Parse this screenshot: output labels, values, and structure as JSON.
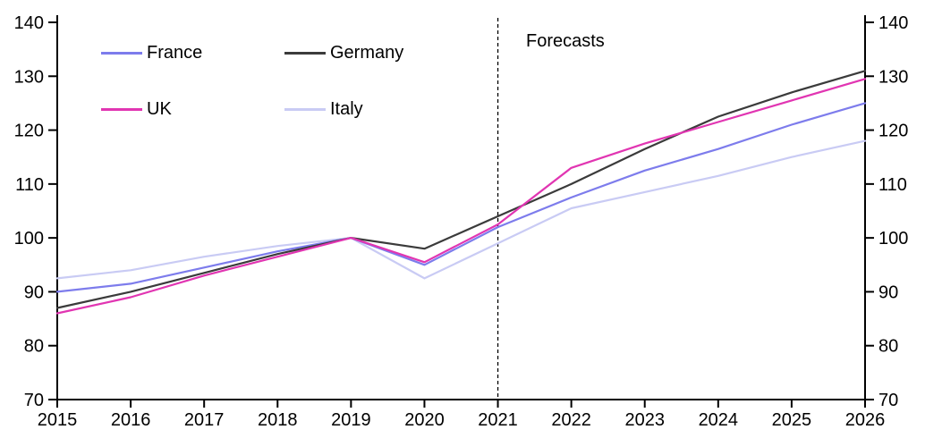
{
  "figure": {
    "background_color": "#ffffff",
    "axis_color": "#000000",
    "text_color": "#000000"
  },
  "legend": {
    "items": [
      {
        "label": "France",
        "color": "#7d7cec"
      },
      {
        "label": "Germany",
        "color": "#3b3b3b"
      },
      {
        "label": "UK",
        "color": "#e135b2"
      },
      {
        "label": "Italy",
        "color": "#c9cbf4"
      }
    ]
  },
  "annotations": {
    "forecasts_label": "Forecasts",
    "forecast_divider_year": 2021
  },
  "chart_data": {
    "type": "line",
    "title": "",
    "xlabel": "",
    "ylabel": "",
    "x": [
      2015,
      2016,
      2017,
      2018,
      2019,
      2020,
      2021,
      2022,
      2023,
      2024,
      2025,
      2026
    ],
    "xtick_labels": [
      "2015",
      "2016",
      "2017",
      "2018",
      "2019",
      "2020",
      "2021",
      "2022",
      "2023",
      "2024",
      "2025",
      "2026"
    ],
    "ylim": [
      70,
      140
    ],
    "ytick_interval": 10,
    "ytick_labels": [
      "70",
      "80",
      "90",
      "100",
      "110",
      "120",
      "130",
      "140"
    ],
    "grid": false,
    "legend_position": "top-left-inside",
    "y_axis_sides": "both",
    "series": [
      {
        "name": "Italy",
        "color": "#c9cbf4",
        "values": [
          92.5,
          94,
          96.5,
          98.5,
          100,
          92.5,
          99,
          105.5,
          108.5,
          111.5,
          115,
          118
        ]
      },
      {
        "name": "France",
        "color": "#7d7cec",
        "values": [
          90,
          91.5,
          94.5,
          97.5,
          100,
          95,
          102,
          107.5,
          112.5,
          116.5,
          121,
          125
        ]
      },
      {
        "name": "Germany",
        "color": "#3b3b3b",
        "values": [
          87,
          90,
          93.5,
          97,
          100,
          98,
          104,
          110,
          116.5,
          122.5,
          127,
          131
        ]
      },
      {
        "name": "UK",
        "color": "#e135b2",
        "values": [
          86,
          89,
          93,
          96.5,
          100,
          95.5,
          102.5,
          113,
          117.5,
          121.5,
          125.5,
          129.5
        ]
      }
    ]
  }
}
